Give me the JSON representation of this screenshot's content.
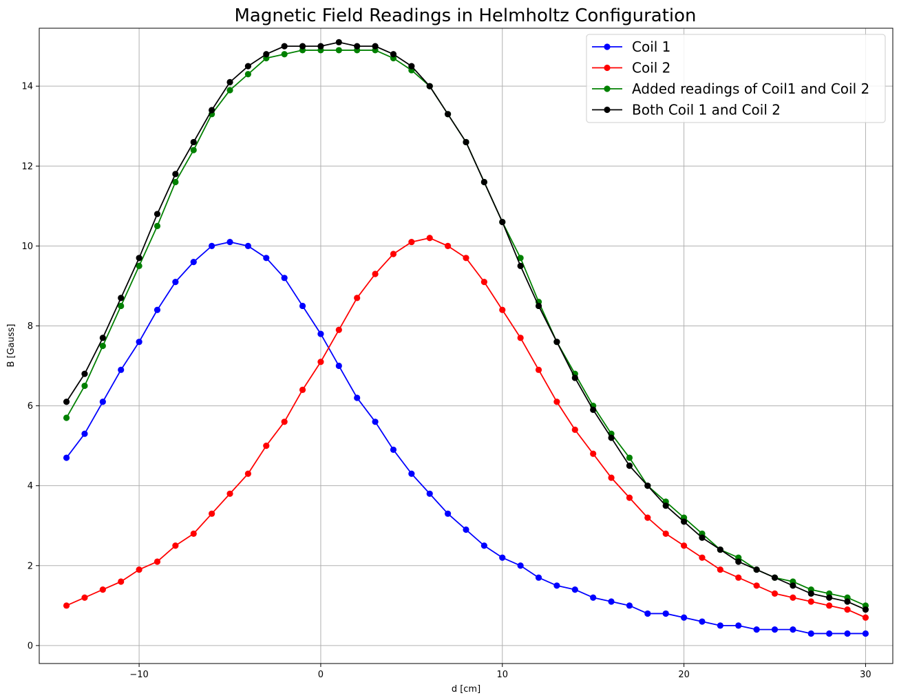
{
  "chart_data": {
    "type": "line",
    "title": "Magnetic Field Readings in Helmholtz Configuration",
    "xlabel": "d [cm]",
    "ylabel": "B [Gauss]",
    "xlim": [
      -15.5,
      31.5
    ],
    "ylim": [
      -0.45,
      15.45
    ],
    "xticks": [
      -10,
      0,
      10,
      20,
      30
    ],
    "yticks": [
      0,
      2,
      4,
      6,
      8,
      10,
      12,
      14
    ],
    "grid": true,
    "legend_position": "top-right",
    "x": [
      -14,
      -13,
      -12,
      -11,
      -10,
      -9,
      -8,
      -7,
      -6,
      -5,
      -4,
      -3,
      -2,
      -1,
      0,
      1,
      2,
      3,
      4,
      5,
      6,
      7,
      8,
      9,
      10,
      11,
      12,
      13,
      14,
      15,
      16,
      17,
      18,
      19,
      20,
      21,
      22,
      23,
      24,
      25,
      26,
      27,
      28,
      29,
      30
    ],
    "series": [
      {
        "name": "Coil 1",
        "color": "#0000ff",
        "values": [
          4.7,
          5.3,
          6.1,
          6.9,
          7.6,
          8.4,
          9.1,
          9.6,
          10.0,
          10.1,
          10.0,
          9.7,
          9.2,
          8.5,
          7.8,
          7.0,
          6.2,
          5.6,
          4.9,
          4.3,
          3.8,
          3.3,
          2.9,
          2.5,
          2.2,
          2.0,
          1.7,
          1.5,
          1.4,
          1.2,
          1.1,
          1.0,
          0.8,
          0.8,
          0.7,
          0.6,
          0.5,
          0.5,
          0.4,
          0.4,
          0.4,
          0.3,
          0.3,
          0.3,
          0.3
        ]
      },
      {
        "name": "Coil 2",
        "color": "#ff0000",
        "values": [
          1.0,
          1.2,
          1.4,
          1.6,
          1.9,
          2.1,
          2.5,
          2.8,
          3.3,
          3.8,
          4.3,
          5.0,
          5.6,
          6.4,
          7.1,
          7.9,
          8.7,
          9.3,
          9.8,
          10.1,
          10.2,
          10.0,
          9.7,
          9.1,
          8.4,
          7.7,
          6.9,
          6.1,
          5.4,
          4.8,
          4.2,
          3.7,
          3.2,
          2.8,
          2.5,
          2.2,
          1.9,
          1.7,
          1.5,
          1.3,
          1.2,
          1.1,
          1.0,
          0.9,
          0.7
        ]
      },
      {
        "name": "Added readings of Coil1 and Coil 2",
        "color": "#008000",
        "values": [
          5.7,
          6.5,
          7.5,
          8.5,
          9.5,
          10.5,
          11.6,
          12.4,
          13.3,
          13.9,
          14.3,
          14.7,
          14.8,
          14.9,
          14.9,
          14.9,
          14.9,
          14.9,
          14.7,
          14.4,
          14.0,
          13.3,
          12.6,
          11.6,
          10.6,
          9.7,
          8.6,
          7.6,
          6.8,
          6.0,
          5.3,
          4.7,
          4.0,
          3.6,
          3.2,
          2.8,
          2.4,
          2.2,
          1.9,
          1.7,
          1.6,
          1.4,
          1.3,
          1.2,
          1.0
        ]
      },
      {
        "name": "Both Coil 1 and Coil 2",
        "color": "#000000",
        "values": [
          6.1,
          6.8,
          7.7,
          8.7,
          9.7,
          10.8,
          11.8,
          12.6,
          13.4,
          14.1,
          14.5,
          14.8,
          15.0,
          15.0,
          15.0,
          15.1,
          15.0,
          15.0,
          14.8,
          14.5,
          14.0,
          13.3,
          12.6,
          11.6,
          10.6,
          9.5,
          8.5,
          7.6,
          6.7,
          5.9,
          5.2,
          4.5,
          4.0,
          3.5,
          3.1,
          2.7,
          2.4,
          2.1,
          1.9,
          1.7,
          1.5,
          1.3,
          1.2,
          1.1,
          0.9
        ]
      }
    ]
  }
}
